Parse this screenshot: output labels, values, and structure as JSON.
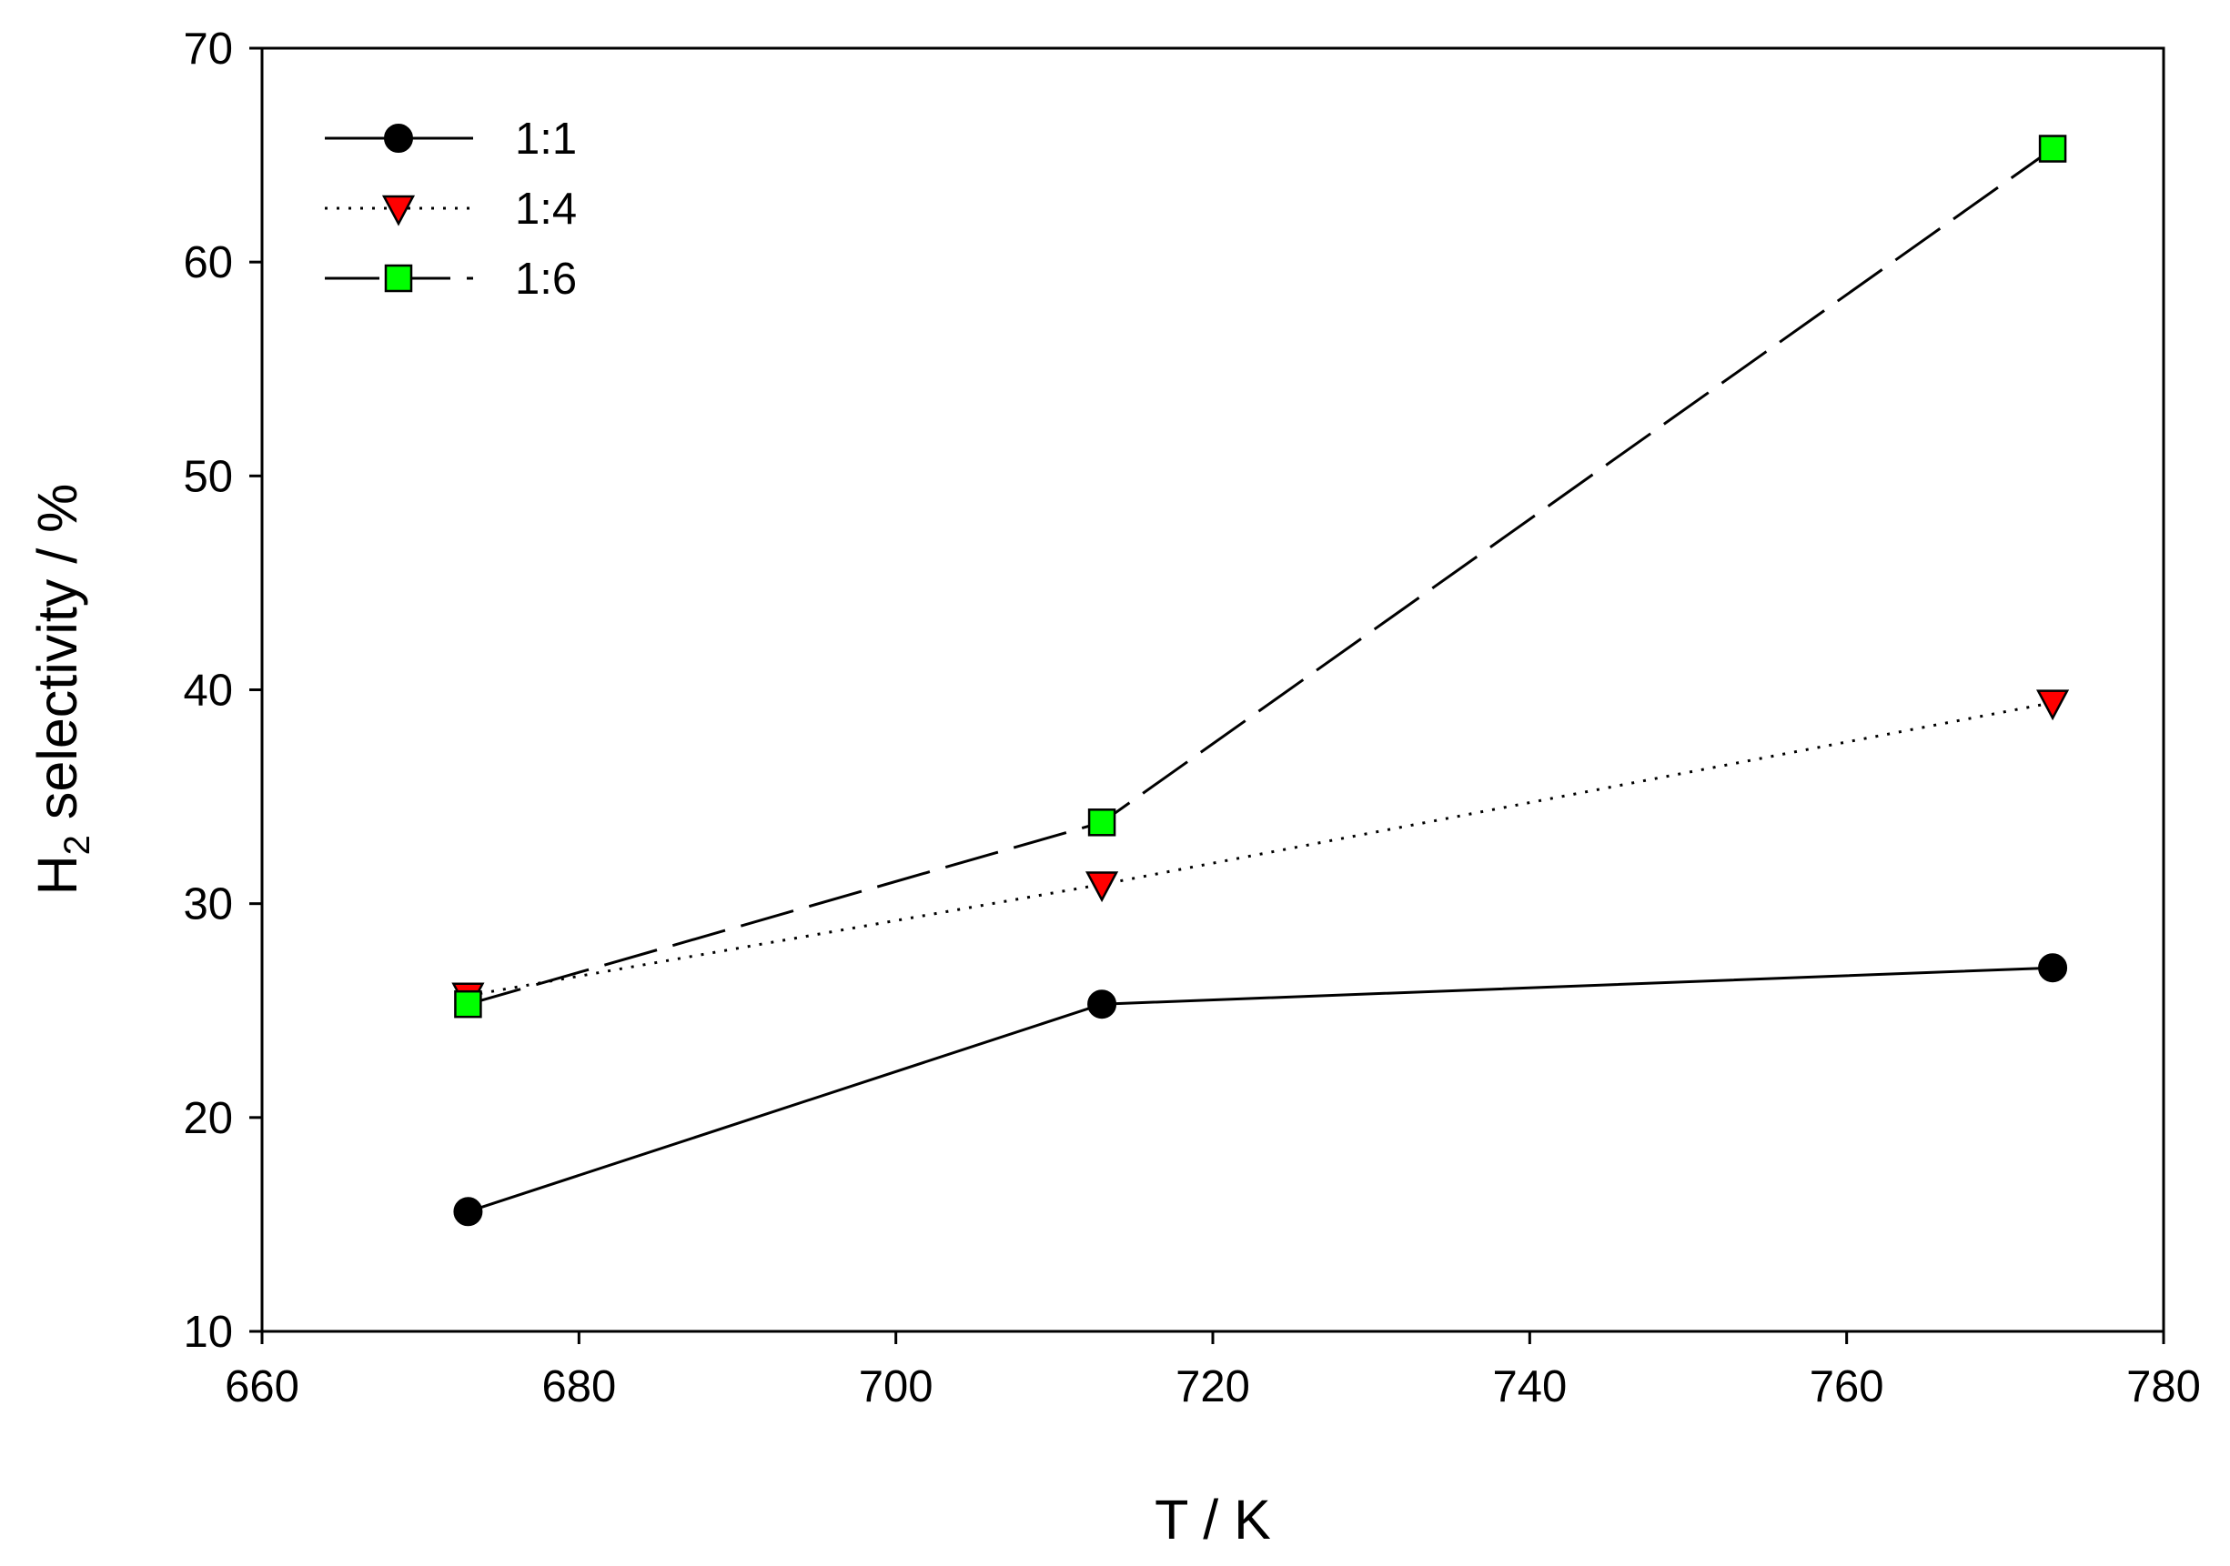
{
  "chart_data": {
    "type": "line",
    "title": "",
    "xlabel": "T / K",
    "ylabel": {
      "main": "H",
      "subscript": "2",
      "rest": " selectivity / %"
    },
    "xlim": [
      660,
      780
    ],
    "ylim": [
      10,
      70
    ],
    "xticks": [
      660,
      680,
      700,
      720,
      740,
      760,
      780
    ],
    "yticks": [
      10,
      20,
      30,
      40,
      50,
      60,
      70
    ],
    "grid": false,
    "legend_position": "top-left",
    "x": [
      673,
      713,
      773
    ],
    "series": [
      {
        "name": "1:1",
        "values": [
          15.6,
          25.3,
          27.0
        ],
        "marker": "circle",
        "line_style": "solid",
        "marker_color": "#000000"
      },
      {
        "name": "1:4",
        "values": [
          25.7,
          30.9,
          39.4
        ],
        "marker": "triangle-down",
        "line_style": "dotted",
        "marker_color": "#ff0000"
      },
      {
        "name": "1:6",
        "values": [
          25.3,
          33.8,
          65.3
        ],
        "marker": "square",
        "line_style": "dashed",
        "marker_color": "#00ff00"
      }
    ]
  }
}
